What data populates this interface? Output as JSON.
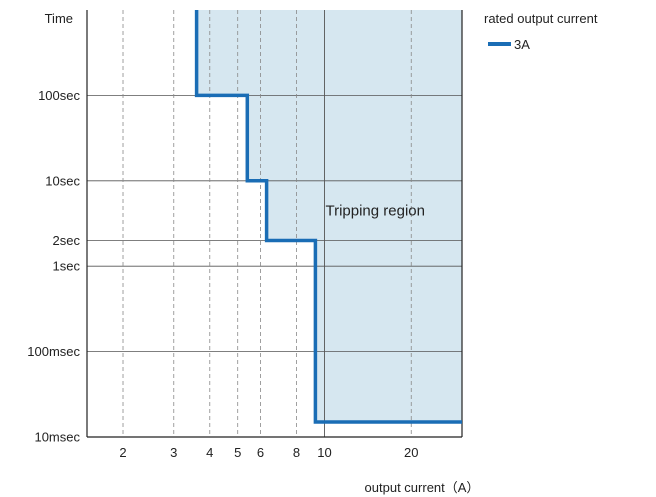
{
  "chart_data": {
    "type": "line",
    "x_scale": "log",
    "y_scale": "log",
    "xlim": [
      1.5,
      30
    ],
    "ylim": [
      0.01,
      1000
    ],
    "x_ticks": [
      {
        "value": 2,
        "label": "2",
        "style": "dashed"
      },
      {
        "value": 3,
        "label": "3",
        "style": "dashed"
      },
      {
        "value": 4,
        "label": "4",
        "style": "dashed"
      },
      {
        "value": 5,
        "label": "5",
        "style": "dashed"
      },
      {
        "value": 6,
        "label": "6",
        "style": "dashed"
      },
      {
        "value": 8,
        "label": "8",
        "style": "dashed"
      },
      {
        "value": 10,
        "label": "10",
        "style": "solid"
      },
      {
        "value": 20,
        "label": "20",
        "style": "dashed"
      }
    ],
    "y_ticks": [
      {
        "value": 100,
        "label": "100sec"
      },
      {
        "value": 10,
        "label": "10sec"
      },
      {
        "value": 2,
        "label": "2sec"
      },
      {
        "value": 1,
        "label": "1sec"
      },
      {
        "value": 0.1,
        "label": "100msec"
      },
      {
        "value": 0.01,
        "label": "10msec"
      }
    ],
    "y_axis_top_label": "Time",
    "xlabel": "output current（A）",
    "grid": true,
    "legend": {
      "title": "rated output current",
      "placement": "top-right, outside plot"
    },
    "series": [
      {
        "name": "3A",
        "color": "#1a6db5",
        "step_points": [
          {
            "x": 3.6,
            "y": 1000
          },
          {
            "x": 3.6,
            "y": 100
          },
          {
            "x": 5.4,
            "y": 100
          },
          {
            "x": 5.4,
            "y": 10
          },
          {
            "x": 6.3,
            "y": 10
          },
          {
            "x": 6.3,
            "y": 2
          },
          {
            "x": 9.3,
            "y": 2
          },
          {
            "x": 9.3,
            "y": 0.015
          },
          {
            "x": 30,
            "y": 0.015
          }
        ]
      }
    ],
    "region": {
      "label": "Tripping region",
      "label_x": 15,
      "label_y": 4.5,
      "fill_color": "#d6e7f0"
    },
    "colors": {
      "grid": "#555555",
      "axis": "#222222"
    }
  }
}
